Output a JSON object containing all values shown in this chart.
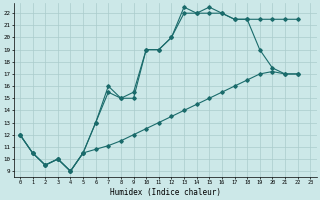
{
  "xlabel": "Humidex (Indice chaleur)",
  "bg_color": "#cce8e8",
  "grid_color": "#aacccc",
  "line_color": "#1a6b6b",
  "xlim": [
    -0.5,
    23.5
  ],
  "ylim": [
    8.5,
    22.8
  ],
  "xticks": [
    0,
    1,
    2,
    3,
    4,
    5,
    6,
    7,
    8,
    9,
    10,
    11,
    12,
    13,
    14,
    15,
    16,
    17,
    18,
    19,
    20,
    21,
    22,
    23
  ],
  "yticks": [
    9,
    10,
    11,
    12,
    13,
    14,
    15,
    16,
    17,
    18,
    19,
    20,
    21,
    22
  ],
  "line1_x": [
    0,
    1,
    2,
    3,
    4,
    5,
    6,
    7,
    8,
    9,
    10,
    11,
    12,
    13,
    14,
    15,
    16,
    17,
    18,
    19,
    20,
    21,
    22
  ],
  "line1_y": [
    12,
    10.5,
    9.5,
    10,
    9,
    10.5,
    13,
    15.5,
    15,
    15.5,
    19,
    19,
    20,
    22,
    22,
    22.5,
    22,
    21.5,
    21.5,
    21.5,
    21.5,
    21.5,
    21.5
  ],
  "line2_x": [
    0,
    1,
    2,
    3,
    4,
    5,
    6,
    7,
    8,
    9,
    10,
    11,
    12,
    13,
    14,
    15,
    16,
    17,
    18,
    19,
    20,
    21,
    22
  ],
  "line2_y": [
    12,
    10.5,
    9.5,
    10,
    9,
    10.5,
    13,
    16,
    15,
    15,
    19,
    19,
    20,
    22.5,
    22,
    22,
    22,
    21.5,
    21.5,
    19,
    17.5,
    17,
    17
  ],
  "line3_x": [
    0,
    1,
    2,
    3,
    4,
    5,
    6,
    7,
    8,
    9,
    10,
    11,
    12,
    13,
    14,
    15,
    16,
    17,
    18,
    19,
    20,
    21,
    22
  ],
  "line3_y": [
    12,
    10.5,
    9.5,
    10,
    9,
    10.5,
    10.8,
    11.1,
    11.5,
    12.0,
    12.5,
    13.0,
    13.5,
    14.0,
    14.5,
    15.0,
    15.5,
    16.0,
    16.5,
    17.0,
    17.2,
    17.0,
    17.0
  ]
}
